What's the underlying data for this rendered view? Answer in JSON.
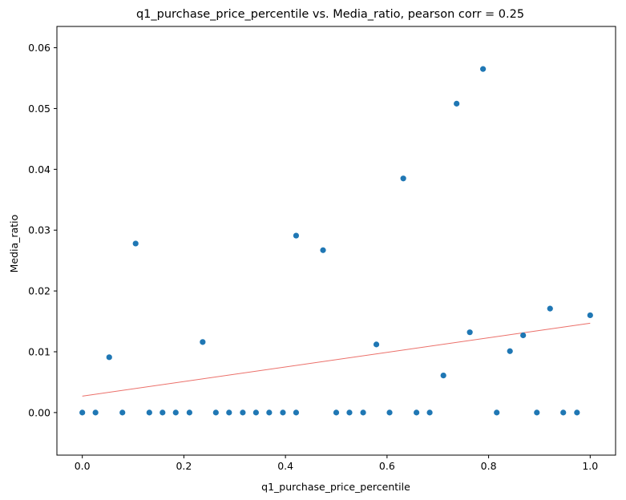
{
  "chart_data": {
    "type": "scatter",
    "title": "q1_purchase_price_percentile vs. Media_ratio, pearson corr = 0.25",
    "xlabel": "q1_purchase_price_percentile",
    "ylabel": "Media_ratio",
    "xlim": [
      -0.05,
      1.05
    ],
    "ylim": [
      -0.007,
      0.0635
    ],
    "xticks": [
      0.0,
      0.2,
      0.4,
      0.6,
      0.8,
      1.0
    ],
    "xtick_labels": [
      "0.0",
      "0.2",
      "0.4",
      "0.6",
      "0.8",
      "1.0"
    ],
    "yticks": [
      0.0,
      0.01,
      0.02,
      0.03,
      0.04,
      0.05,
      0.06
    ],
    "ytick_labels": [
      "0.00",
      "0.01",
      "0.02",
      "0.03",
      "0.04",
      "0.05",
      "0.06"
    ],
    "grid": false,
    "point_color": "#1f77b4",
    "trend_color": "#e8564f",
    "series": [
      {
        "x": [
          0.0,
          0.026,
          0.053,
          0.079,
          0.105,
          0.132,
          0.158,
          0.184,
          0.211,
          0.237,
          0.263,
          0.289,
          0.316,
          0.342,
          0.368,
          0.395,
          0.421,
          0.421,
          0.474,
          0.5,
          0.526,
          0.553,
          0.579,
          0.605,
          0.632,
          0.658,
          0.684,
          0.711,
          0.737,
          0.763,
          0.789,
          0.816,
          0.842,
          0.868,
          0.895,
          0.921,
          0.947,
          0.974,
          1.0
        ],
        "y": [
          0.0,
          0.0,
          0.0091,
          0.0,
          0.0278,
          0.0,
          0.0,
          0.0,
          0.0,
          0.0116,
          0.0,
          0.0,
          0.0,
          0.0,
          0.0,
          0.0,
          0.0,
          0.0291,
          0.0267,
          0.0,
          0.0,
          0.0,
          0.0112,
          0.0,
          0.0385,
          0.0,
          0.0,
          0.0061,
          0.0508,
          0.0132,
          0.0565,
          0.0,
          0.0101,
          0.0127,
          0.0,
          0.0171,
          0.0,
          0.0,
          0.016
        ]
      }
    ],
    "trendline": {
      "x": [
        0.0,
        1.0
      ],
      "y": [
        0.0027,
        0.0147
      ]
    }
  }
}
